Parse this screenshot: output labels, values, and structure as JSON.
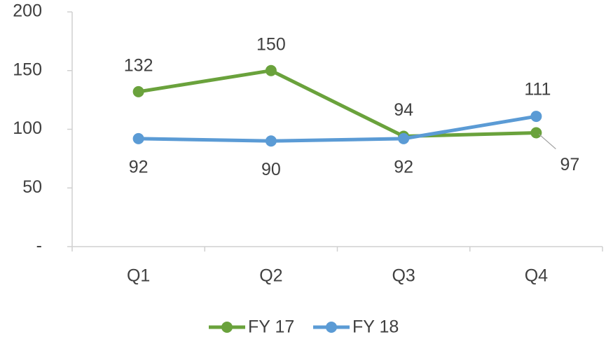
{
  "chart_data": {
    "type": "line",
    "categories": [
      "Q1",
      "Q2",
      "Q3",
      "Q4"
    ],
    "series": [
      {
        "name": "FY 17",
        "color": "#6aa23c",
        "values": [
          132,
          150,
          94,
          97
        ]
      },
      {
        "name": "FY 18",
        "color": "#5b9bd5",
        "values": [
          92,
          90,
          92,
          111
        ]
      }
    ],
    "ylim": [
      0,
      200
    ],
    "yticks": [
      {
        "value": 0,
        "label": "-"
      },
      50,
      100,
      150,
      200
    ],
    "legend": "bottom"
  }
}
